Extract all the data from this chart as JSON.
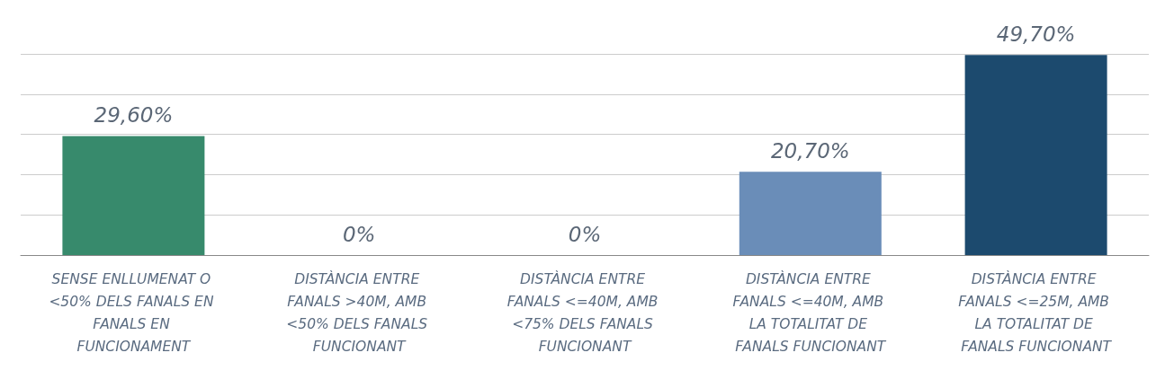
{
  "chart_data": {
    "type": "bar",
    "categories": [
      "SENSE ENLLUMENAT O <50% DELS FANALS EN FANALS EN FUNCIONAMENT",
      "DISTÀNCIA ENTRE FANALS >40M, AMB <50% DELS FANALS FUNCIONANT",
      "DISTÀNCIA ENTRE FANALS <=40M, AMB <75% DELS FANALS FUNCIONANT",
      "DISTÀNCIA ENTRE FANALS <=40M, AMB LA TOTALITAT DE FANALS FUNCIONANT",
      "DISTÀNCIA ENTRE FANALS <=25M, AMB LA TOTALITAT DE FANALS FUNCIONANT"
    ],
    "values": [
      29.6,
      0,
      0,
      20.7,
      49.7
    ],
    "colors": [
      "#378a6c",
      "#6a8db8",
      "#6a8db8",
      "#6a8db8",
      "#1c4a6e"
    ],
    "value_labels": [
      "29,60%",
      "0%",
      "0%",
      "20,70%",
      "49,70%"
    ],
    "ylim": [
      0,
      50
    ],
    "yticks": [
      0,
      10,
      20,
      30,
      40,
      50
    ],
    "tick_labels": "x",
    "grid": "y"
  }
}
